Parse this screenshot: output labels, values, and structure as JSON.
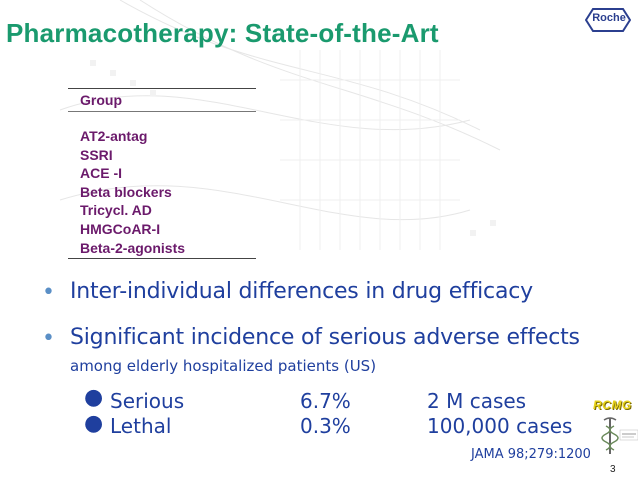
{
  "title": "Pharmacotherapy: State-of-the-Art",
  "logo": {
    "text": "Roche",
    "color": "#2b3f8f"
  },
  "table": {
    "header": "Group",
    "groups": [
      "AT2-antag",
      "SSRI",
      "ACE -I",
      "Beta blockers",
      "Tricycl. AD",
      "HMGCoAR-I",
      "Beta-2-agonists"
    ]
  },
  "bullets": [
    {
      "text": "Inter-individual differences in drug efficacy"
    },
    {
      "text": "Significant incidence of serious adverse effects",
      "subtext": "among elderly hospitalized patients (US)"
    }
  ],
  "adverse_effects": [
    {
      "label": "Serious",
      "percent": "6.7%",
      "cases": "2 M cases"
    },
    {
      "label": "Lethal",
      "percent": "0.3%",
      "cases": "100,000 cases"
    }
  ],
  "reference": "JAMA 98;279:1200",
  "page_number": "3",
  "rcmg_badge": "RCMG",
  "colors": {
    "title": "#1a9a6e",
    "table_text": "#6b1a6b",
    "body_text": "#1f3f9e",
    "bullet": "#5a8fc6"
  }
}
